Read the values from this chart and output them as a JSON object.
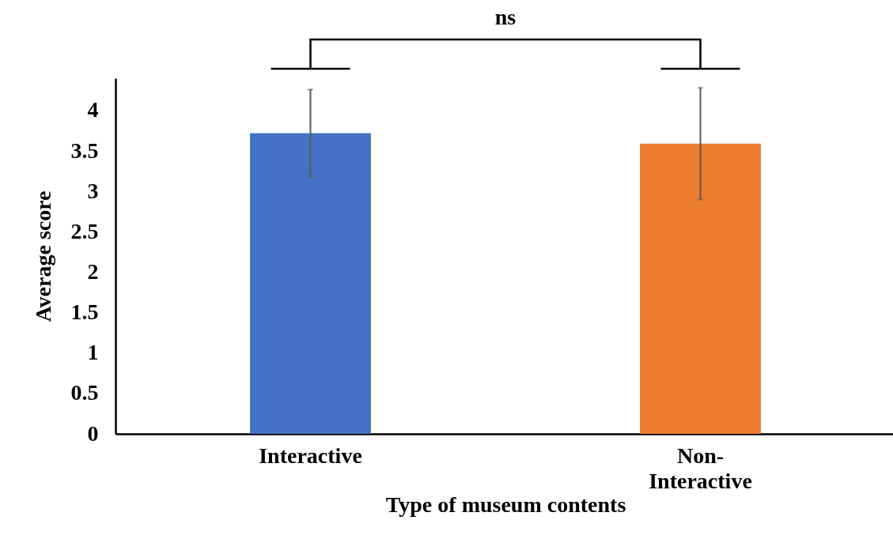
{
  "chart_data": {
    "type": "bar",
    "xlabel": "Type of museum contents",
    "ylabel": "Average score",
    "categories": [
      "Interactive",
      "Non-Interactive"
    ],
    "values": [
      3.72,
      3.59
    ],
    "colors": [
      "#4472c4",
      "#ed7d31"
    ],
    "errors": [
      [
        3.18,
        4.26
      ],
      [
        2.9,
        4.28
      ]
    ],
    "ylim": [
      0,
      4.4
    ],
    "yticks": [
      0,
      0.5,
      1,
      1.5,
      2,
      2.5,
      3,
      3.5,
      4
    ],
    "annotations": [
      "ns"
    ],
    "grid": false,
    "legend": false
  }
}
